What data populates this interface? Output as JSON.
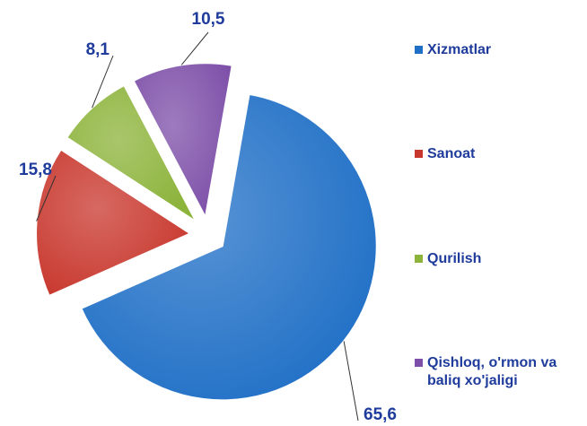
{
  "chart_data": {
    "type": "pie",
    "categories": [
      "Xizmatlar",
      "Sanoat",
      "Qurilish",
      "Qishloq, o'rmon va baliq xo'jaligi"
    ],
    "values": [
      65.6,
      15.8,
      8.1,
      10.5
    ],
    "value_labels": [
      "65,6",
      "15,8",
      "8,1",
      "10,5"
    ],
    "colors": [
      "#1f6fc6",
      "#c8372d",
      "#8cb33a",
      "#7d4fa8"
    ]
  }
}
